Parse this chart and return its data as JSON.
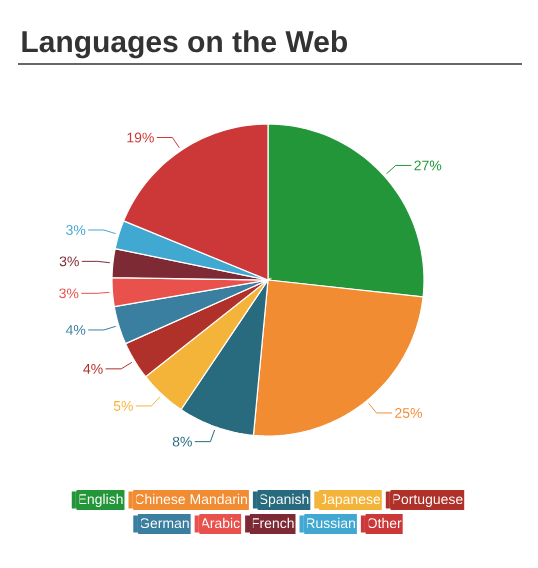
{
  "chart_data": {
    "type": "pie",
    "title": "Languages on the Web",
    "categories": [
      "English",
      "Chinese Mandarin",
      "Spanish",
      "Japanese",
      "Portuguese",
      "German",
      "Arabic",
      "French",
      "Russian",
      "Other"
    ],
    "values": [
      27,
      25,
      8,
      5,
      4,
      4,
      3,
      3,
      3,
      19
    ],
    "value_labels": [
      "27%",
      "25%",
      "8%",
      "5%",
      "4%",
      "4%",
      "3%",
      "3%",
      "3%",
      "19%"
    ],
    "colors": [
      "#23963a",
      "#f28c33",
      "#286a7e",
      "#f4b43a",
      "#b0302a",
      "#3a7fa0",
      "#e8514c",
      "#7e2a35",
      "#41a8d2",
      "#cc3838"
    ],
    "legend": "bottom"
  }
}
